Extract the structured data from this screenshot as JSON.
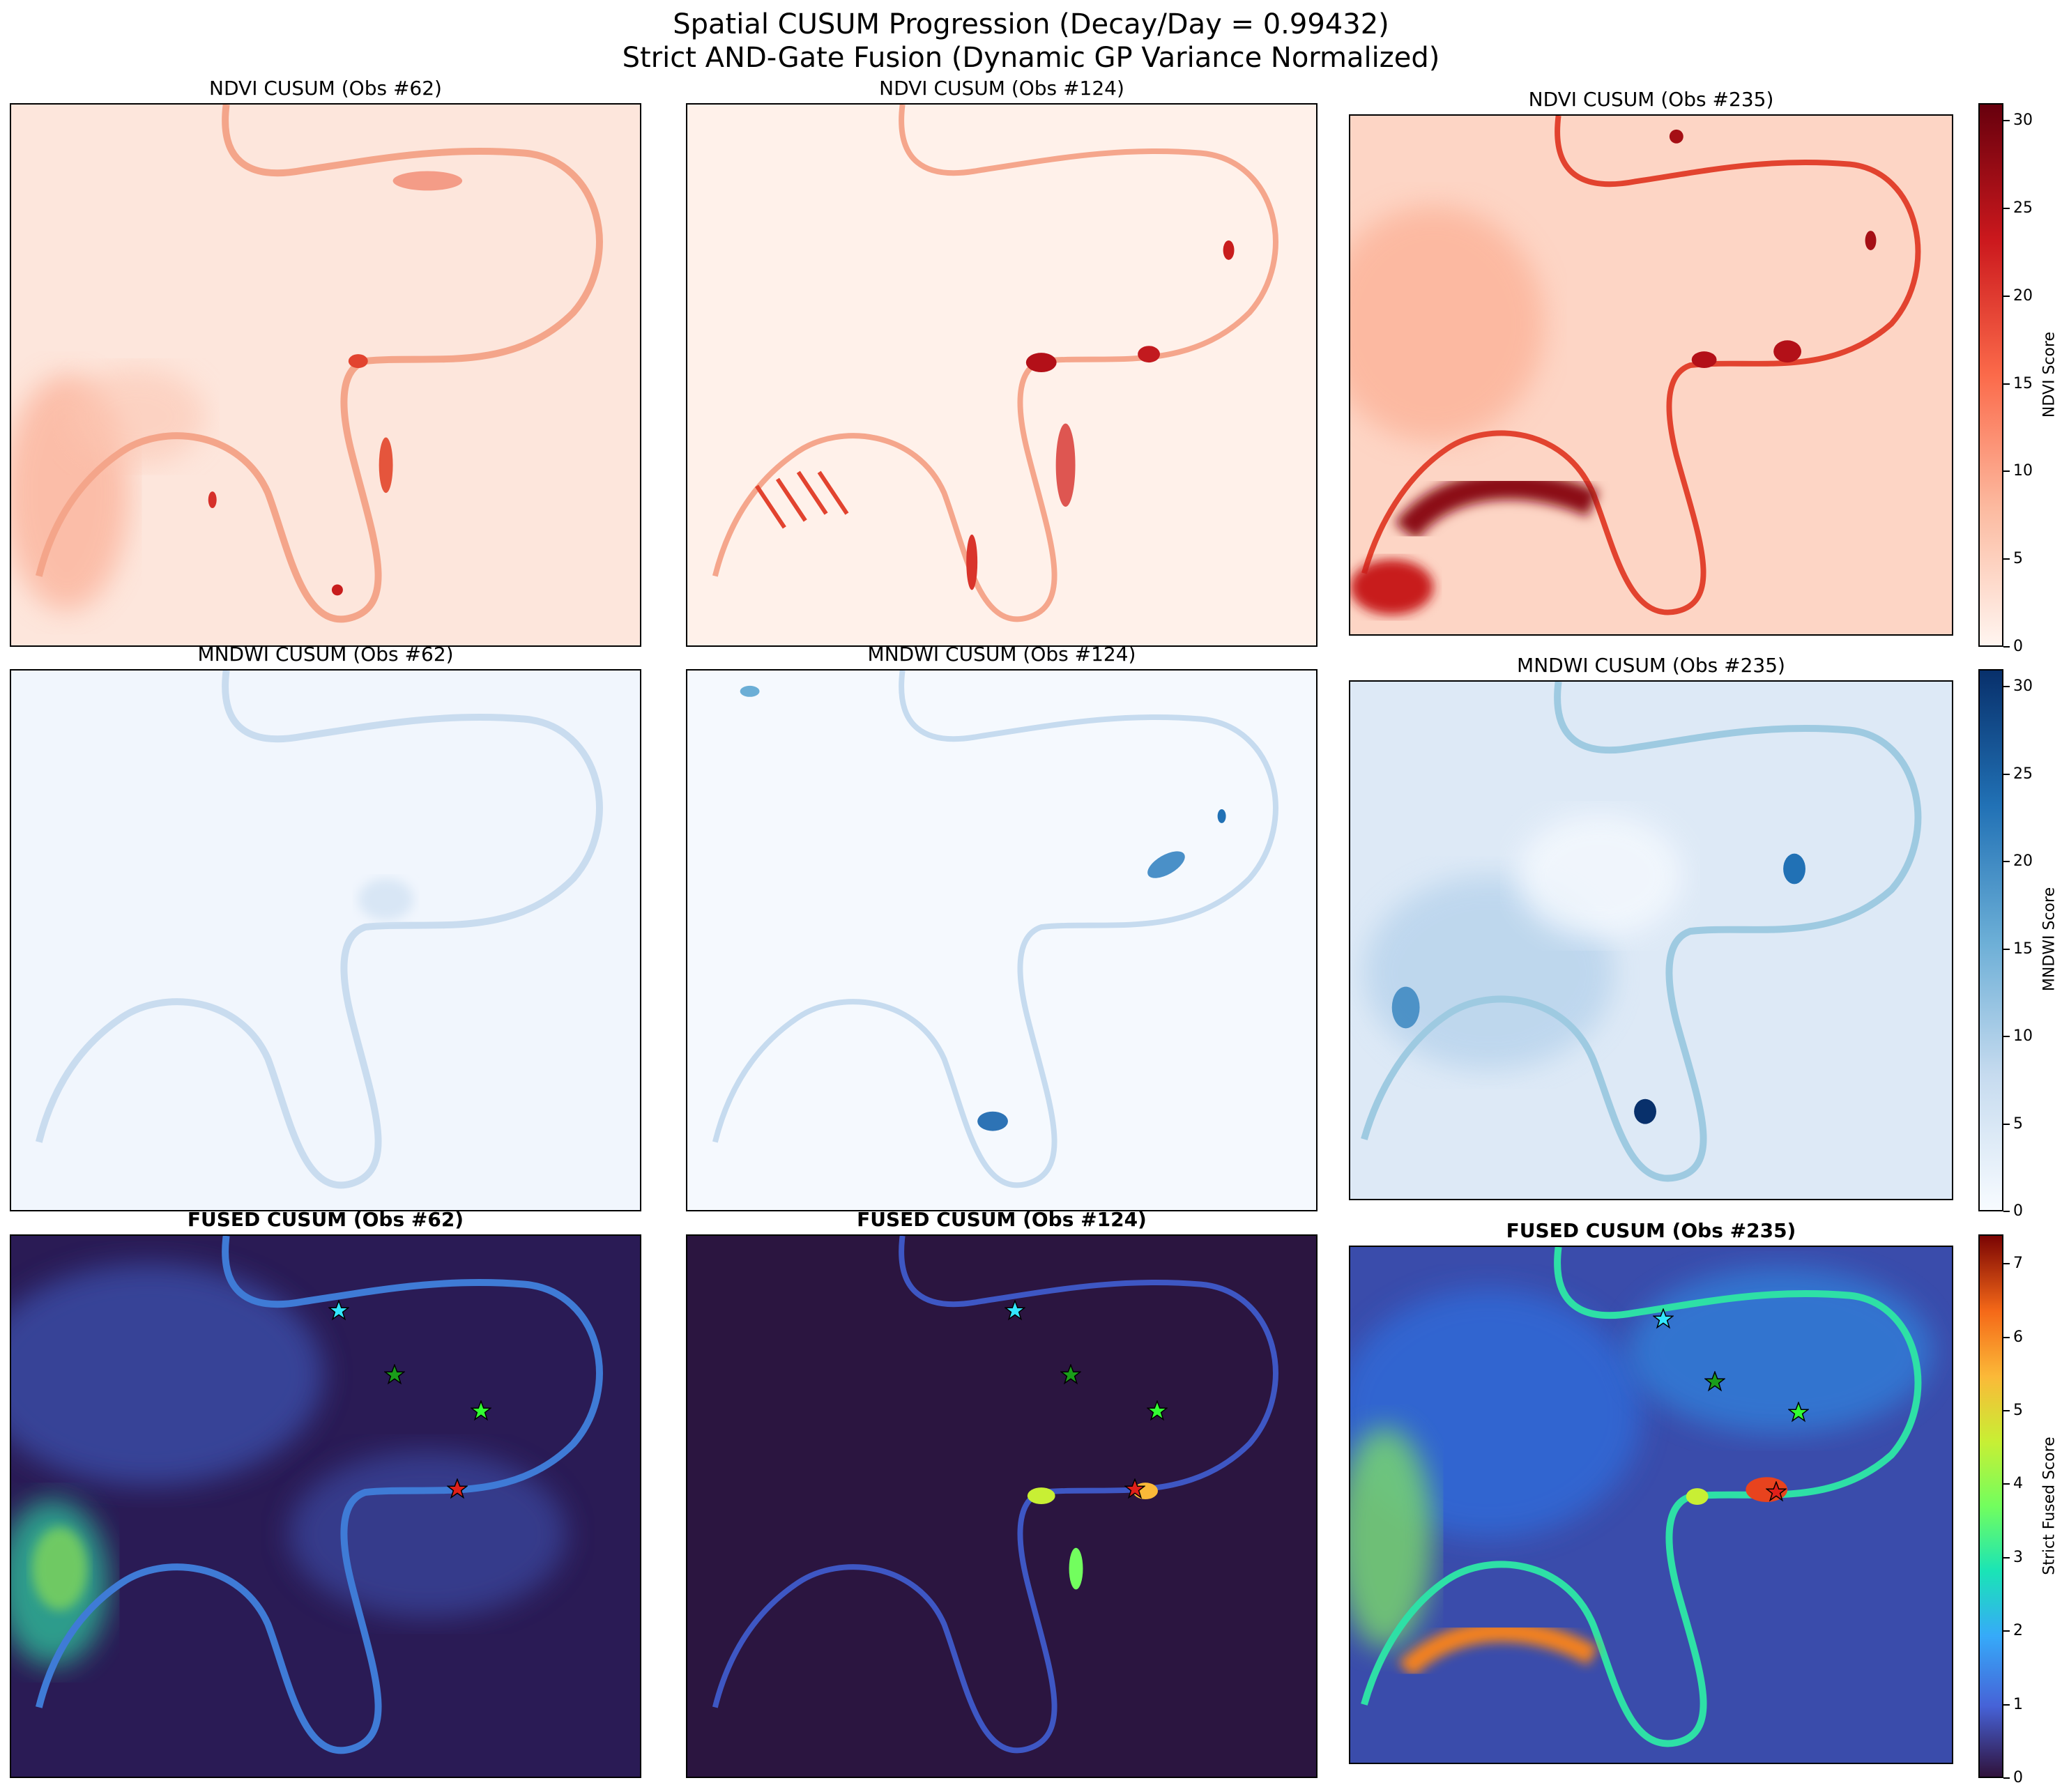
{
  "title_line1": "Spatial CUSUM Progression (Decay/Day = 0.99432)",
  "title_line2": "Strict AND-Gate Fusion (Dynamic GP Variance Normalized)",
  "chart_data": {
    "type": "heatmap",
    "layout": "3x3 grid",
    "rows": [
      {
        "index": "NDVI",
        "colormap": "Reds",
        "colorbar_label": "NDVI Score",
        "range": [
          0,
          31
        ],
        "ticks": [
          "0",
          "5",
          "10",
          "15",
          "20",
          "25",
          "30"
        ]
      },
      {
        "index": "MNDWI",
        "colormap": "Blues",
        "colorbar_label": "MNDWI Score",
        "range": [
          0,
          31
        ],
        "ticks": [
          "0",
          "5",
          "10",
          "15",
          "20",
          "25",
          "30"
        ]
      },
      {
        "index": "FUSED",
        "colormap": "turbo",
        "colorbar_label": "Strict Fused Score",
        "range": [
          0,
          7.4
        ],
        "ticks": [
          "0",
          "1",
          "2",
          "3",
          "4",
          "5",
          "6",
          "7"
        ]
      }
    ],
    "panels": [
      [
        "NDVI CUSUM (Obs #62)",
        "NDVI CUSUM (Obs #124)",
        "NDVI CUSUM (Obs #235)"
      ],
      [
        "MNDWI CUSUM (Obs #62)",
        "MNDWI CUSUM (Obs #124)",
        "MNDWI CUSUM (Obs #235)"
      ],
      [
        "FUSED CUSUM (Obs #62)",
        "FUSED CUSUM (Obs #124)",
        "FUSED CUSUM (Obs #235)"
      ]
    ],
    "observations": [
      62,
      124,
      235
    ],
    "markers": [
      "cyan",
      "green",
      "lime",
      "red"
    ]
  }
}
